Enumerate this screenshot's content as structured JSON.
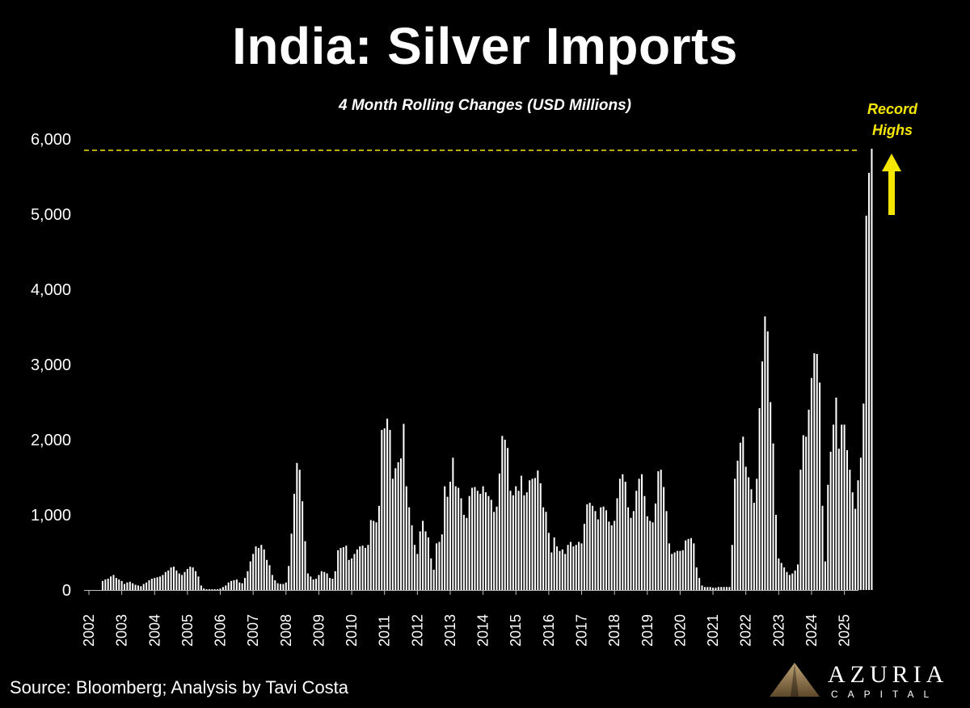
{
  "header": {
    "title": "India: Silver Imports",
    "subtitle": "4 Month Rolling Changes (USD Millions)"
  },
  "annotation": {
    "line1": "Record",
    "line2": "Highs",
    "color": "#f5e600",
    "icon": "arrow-up-icon"
  },
  "footer": {
    "source": "Source: Bloomberg; Analysis by Tavi Costa",
    "logo_name": "AZURIA",
    "logo_sub": "CAPITAL",
    "logo_icon": "mountain-logo-icon"
  },
  "colors": {
    "background": "#000000",
    "bars": "#ffffff",
    "reference_line": "#f5e600"
  },
  "chart_data": {
    "type": "bar",
    "title": "India: Silver Imports",
    "subtitle": "4 Month Rolling Changes (USD Millions)",
    "ylim": [
      0,
      6000
    ],
    "yticks": [
      0,
      1000,
      2000,
      3000,
      4000,
      5000,
      6000
    ],
    "ytick_labels": [
      "0",
      "1,000",
      "2,000",
      "3,000",
      "4,000",
      "5,000",
      "6,000"
    ],
    "xlim": [
      2002,
      2025.33
    ],
    "xticks": [
      2002,
      2003,
      2004,
      2005,
      2006,
      2007,
      2008,
      2009,
      2010,
      2011,
      2012,
      2013,
      2014,
      2015,
      2016,
      2017,
      2018,
      2019,
      2020,
      2021,
      2022,
      2023,
      2024,
      2025
    ],
    "reference_line": {
      "y": 5850,
      "style": "dashed",
      "label": "Record Highs"
    },
    "grid": false,
    "legend": "none",
    "frequency": "monthly",
    "x_start": "2002-01",
    "values": [
      0,
      0,
      0,
      0,
      0,
      120,
      140,
      150,
      180,
      200,
      160,
      140,
      120,
      80,
      100,
      110,
      90,
      70,
      60,
      50,
      80,
      100,
      130,
      150,
      160,
      170,
      180,
      200,
      240,
      260,
      300,
      310,
      260,
      220,
      200,
      240,
      280,
      310,
      300,
      250,
      180,
      60,
      20,
      10,
      10,
      10,
      10,
      10,
      20,
      40,
      60,
      100,
      120,
      130,
      140,
      100,
      90,
      160,
      250,
      380,
      480,
      580,
      560,
      600,
      540,
      400,
      330,
      200,
      130,
      90,
      80,
      80,
      100,
      320,
      750,
      1280,
      1690,
      1600,
      1180,
      650,
      220,
      180,
      140,
      150,
      200,
      250,
      240,
      220,
      160,
      150,
      250,
      530,
      560,
      570,
      590,
      400,
      420,
      480,
      540,
      580,
      590,
      560,
      600,
      930,
      920,
      900,
      1120,
      2130,
      2150,
      2280,
      2130,
      1480,
      1620,
      1700,
      1750,
      2210,
      1380,
      1100,
      860,
      600,
      480,
      780,
      920,
      780,
      700,
      420,
      270,
      620,
      640,
      740,
      1380,
      1240,
      1440,
      1760,
      1380,
      1360,
      1220,
      1000,
      960,
      1250,
      1360,
      1370,
      1320,
      1280,
      1380,
      1300,
      1250,
      1200,
      1040,
      1110,
      1550,
      2050,
      2000,
      1890,
      1320,
      1260,
      1380,
      1320,
      1520,
      1260,
      1300,
      1460,
      1480,
      1490,
      1590,
      1420,
      1100,
      1040,
      760,
      500,
      700,
      580,
      520,
      540,
      480,
      600,
      640,
      580,
      600,
      640,
      620,
      880,
      1140,
      1160,
      1120,
      1050,
      940,
      1100,
      1110,
      1060,
      910,
      860,
      920,
      1220,
      1480,
      1540,
      1440,
      1100,
      960,
      1050,
      1320,
      1480,
      1540,
      1250,
      980,
      920,
      900,
      1150,
      1580,
      1600,
      1370,
      1050,
      620,
      480,
      500,
      520,
      520,
      530,
      660,
      680,
      690,
      620,
      300,
      160,
      60,
      40,
      40,
      40,
      30,
      30,
      40,
      40,
      40,
      40,
      40,
      600,
      1480,
      1720,
      1960,
      2040,
      1640,
      1500,
      1340,
      1160,
      1480,
      2420,
      3040,
      3640,
      3440,
      2500,
      1950,
      1000,
      420,
      360,
      300,
      240,
      200,
      220,
      260,
      340,
      1600,
      2060,
      2040,
      2400,
      2820,
      3150,
      3140,
      2760,
      1120,
      380,
      1400,
      1840,
      2200,
      2560,
      1880,
      2200,
      2200,
      1860,
      1600,
      1300,
      1080,
      1460,
      1760,
      2480,
      4980,
      5550,
      5870
    ]
  }
}
